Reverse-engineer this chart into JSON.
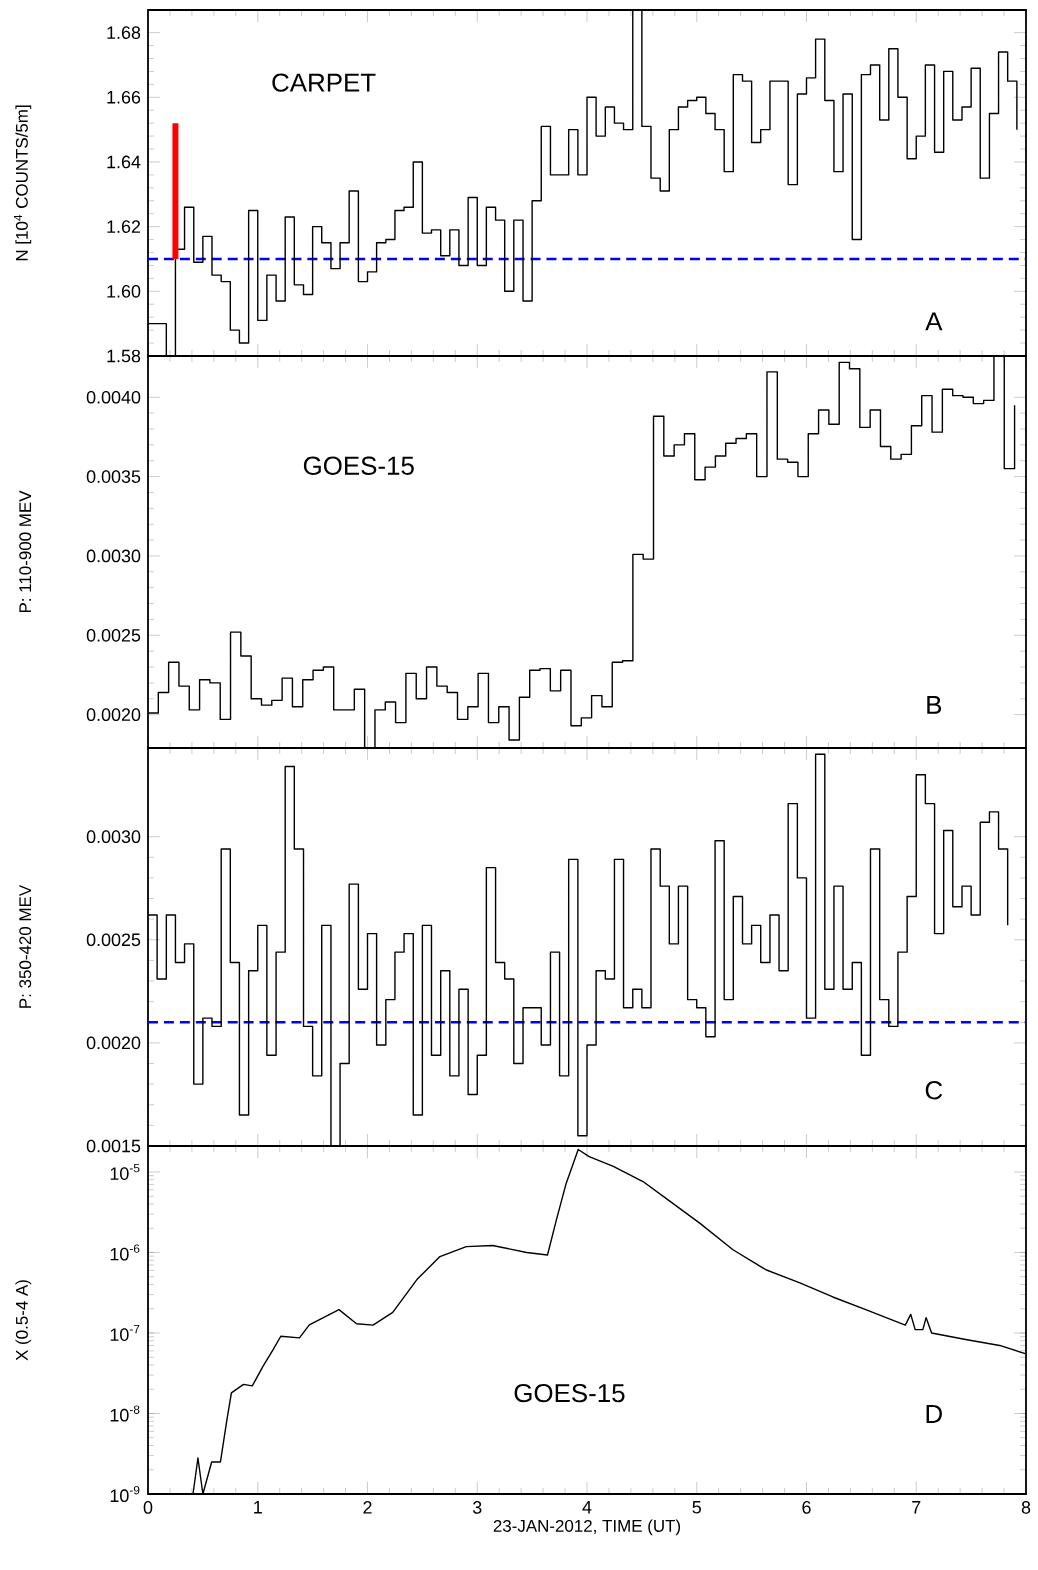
{
  "chart_data": [
    {
      "type": "step",
      "ylabel": "N [10$^{4}$ COUNTS/5m]",
      "annotations": [
        "CARPET",
        "A"
      ],
      "x": [
        0,
        0.083,
        0.167,
        0.25,
        0.333,
        0.417,
        0.5,
        0.583,
        0.667,
        0.75,
        0.833,
        0.917,
        1,
        1.083,
        1.167,
        1.25,
        1.333,
        1.417,
        1.5,
        1.583,
        1.667,
        1.75,
        1.833,
        1.917,
        2,
        2.083,
        2.167,
        2.25,
        2.333,
        2.417,
        2.5,
        2.583,
        2.667,
        2.75,
        2.833,
        2.917,
        3,
        3.083,
        3.167,
        3.25,
        3.333,
        3.417,
        3.5,
        3.583,
        3.667,
        3.75,
        3.833,
        3.917,
        4,
        4.083,
        4.167,
        4.25,
        4.333,
        4.417,
        4.5,
        4.583,
        4.667,
        4.75,
        4.833,
        4.917,
        5,
        5.083,
        5.167,
        5.25,
        5.333,
        5.417,
        5.5,
        5.583,
        5.667,
        5.75,
        5.833,
        5.917,
        6,
        6.083,
        6.167,
        6.25,
        6.333,
        6.417,
        6.5,
        6.583,
        6.667,
        6.75,
        6.833,
        6.917,
        7,
        7.083,
        7.167,
        7.25,
        7.333,
        7.417,
        7.5,
        7.583,
        7.667,
        7.75,
        7.833,
        7.917
      ],
      "series": [
        {
          "color": "#000000",
          "values": [
            1.59,
            1.59,
            1.58,
            1.613,
            1.626,
            1.609,
            1.617,
            1.605,
            1.603,
            1.588,
            1.584,
            1.625,
            1.591,
            1.605,
            1.597,
            1.623,
            1.602,
            1.599,
            1.62,
            1.615,
            1.607,
            1.615,
            1.631,
            1.603,
            1.606,
            1.615,
            1.616,
            1.625,
            1.626,
            1.64,
            1.618,
            1.619,
            1.611,
            1.619,
            1.608,
            1.629,
            1.608,
            1.626,
            1.622,
            1.6,
            1.622,
            1.597,
            1.628,
            1.651,
            1.636,
            1.636,
            1.65,
            1.636,
            1.66,
            1.648,
            1.657,
            1.652,
            1.65,
            1.687,
            1.651,
            1.635,
            1.631,
            1.65,
            1.657,
            1.659,
            1.66,
            1.655,
            1.65,
            1.637,
            1.667,
            1.665,
            1.646,
            1.65,
            1.665,
            1.665,
            1.633,
            1.661,
            1.666,
            1.678,
            1.659,
            1.637,
            1.661,
            1.616,
            1.667,
            1.67,
            1.653,
            1.675,
            1.66,
            1.641,
            1.648,
            1.67,
            1.643,
            1.668,
            1.653,
            1.657,
            1.669,
            1.635,
            1.655,
            1.674,
            1.665,
            1.65
          ]
        },
        {
          "type": "line",
          "color": "#ff0000",
          "x": [
            0.25,
            0.25
          ],
          "values": [
            1.61,
            1.652
          ]
        }
      ],
      "ref_lines": [
        {
          "axis": "y",
          "value": 1.61,
          "color": "#0000ff",
          "line_style": "dashed"
        }
      ],
      "xlim": [
        0,
        8
      ],
      "xticks": [
        {
          "value": 0,
          "label": null
        },
        {
          "value": 1,
          "label": null
        },
        {
          "value": 2,
          "label": null
        },
        {
          "value": 3,
          "label": null
        },
        {
          "value": 4,
          "label": null
        },
        {
          "value": 5,
          "label": null
        },
        {
          "value": 6,
          "label": null
        },
        {
          "value": 7,
          "label": null
        },
        {
          "value": 8,
          "label": null
        }
      ],
      "ylim": [
        1.58,
        1.687
      ],
      "yticks": [
        {
          "value": 1.58,
          "label": "1.58"
        },
        {
          "value": 1.6,
          "label": "1.60"
        },
        {
          "value": 1.62,
          "label": "1.62"
        },
        {
          "value": 1.64,
          "label": "1.64"
        },
        {
          "value": 1.66,
          "label": "1.66"
        },
        {
          "value": 1.68,
          "label": "1.68"
        }
      ],
      "tick_labels": "y"
    },
    {
      "type": "step",
      "ylabel": "P: 110-900 MEV",
      "annotations": [
        "GOES-15",
        "B"
      ],
      "x": [
        0,
        0.094,
        0.188,
        0.282,
        0.376,
        0.47,
        0.564,
        0.658,
        0.752,
        0.846,
        0.94,
        1.034,
        1.128,
        1.222,
        1.316,
        1.41,
        1.504,
        1.598,
        1.692,
        1.786,
        1.88,
        1.974,
        2.068,
        2.162,
        2.256,
        2.35,
        2.444,
        2.538,
        2.632,
        2.726,
        2.82,
        2.914,
        3.008,
        3.102,
        3.196,
        3.29,
        3.384,
        3.478,
        3.572,
        3.666,
        3.76,
        3.854,
        3.948,
        4.042,
        4.136,
        4.23,
        4.324,
        4.418,
        4.512,
        4.606,
        4.7,
        4.794,
        4.888,
        4.982,
        5.076,
        5.17,
        5.264,
        5.358,
        5.452,
        5.546,
        5.64,
        5.734,
        5.828,
        5.922,
        6.016,
        6.11,
        6.204,
        6.298,
        6.392,
        6.486,
        6.58,
        6.674,
        6.768,
        6.862,
        6.956,
        7.05,
        7.144,
        7.238,
        7.332,
        7.426,
        7.52,
        7.614,
        7.708,
        7.802,
        7.896
      ],
      "series": [
        {
          "color": "#000000",
          "values": [
            0.00201,
            0.00214,
            0.00233,
            0.00218,
            0.00203,
            0.00222,
            0.0022,
            0.00197,
            0.00252,
            0.00237,
            0.0021,
            0.00206,
            0.00209,
            0.00223,
            0.00205,
            0.00222,
            0.00228,
            0.0023,
            0.00203,
            0.00203,
            0.00216,
            0.00179,
            0.00203,
            0.00208,
            0.00195,
            0.00226,
            0.0021,
            0.0023,
            0.00218,
            0.00214,
            0.00197,
            0.00205,
            0.00226,
            0.00195,
            0.00205,
            0.00184,
            0.00211,
            0.00228,
            0.00229,
            0.00215,
            0.00228,
            0.00193,
            0.00198,
            0.00212,
            0.00205,
            0.00233,
            0.00234,
            0.00301,
            0.00298,
            0.00388,
            0.00363,
            0.0037,
            0.00377,
            0.00348,
            0.00356,
            0.00363,
            0.00371,
            0.00374,
            0.00377,
            0.0035,
            0.00416,
            0.00361,
            0.00359,
            0.0035,
            0.00377,
            0.00392,
            0.00383,
            0.00422,
            0.00418,
            0.00381,
            0.00392,
            0.00369,
            0.00361,
            0.00364,
            0.00382,
            0.00401,
            0.00378,
            0.00405,
            0.00401,
            0.004,
            0.00396,
            0.00398,
            0.00426,
            0.00355,
            0.00395
          ]
        }
      ],
      "xlim": [
        0,
        8
      ],
      "xticks": [
        {
          "value": 0,
          "label": null
        },
        {
          "value": 1,
          "label": null
        },
        {
          "value": 2,
          "label": null
        },
        {
          "value": 3,
          "label": null
        },
        {
          "value": 4,
          "label": null
        },
        {
          "value": 5,
          "label": null
        },
        {
          "value": 6,
          "label": null
        },
        {
          "value": 7,
          "label": null
        },
        {
          "value": 8,
          "label": null
        }
      ],
      "ylim": [
        0.00179,
        0.00426
      ],
      "yticks": [
        {
          "value": 0.002,
          "label": "0.0020"
        },
        {
          "value": 0.0025,
          "label": "0.0025"
        },
        {
          "value": 0.003,
          "label": "0.0030"
        },
        {
          "value": 0.0035,
          "label": "0.0035"
        },
        {
          "value": 0.004,
          "label": "0.0040"
        }
      ],
      "tick_labels": "y"
    },
    {
      "type": "step",
      "ylabel": "P: 350-420 MEV",
      "annotations": [
        "C"
      ],
      "x": [
        0,
        0.083,
        0.167,
        0.25,
        0.333,
        0.417,
        0.5,
        0.583,
        0.667,
        0.75,
        0.833,
        0.917,
        1,
        1.083,
        1.167,
        1.25,
        1.333,
        1.417,
        1.5,
        1.583,
        1.667,
        1.75,
        1.833,
        1.917,
        2,
        2.083,
        2.167,
        2.25,
        2.333,
        2.417,
        2.5,
        2.583,
        2.667,
        2.75,
        2.833,
        2.917,
        3,
        3.083,
        3.167,
        3.25,
        3.333,
        3.417,
        3.5,
        3.583,
        3.667,
        3.75,
        3.833,
        3.917,
        4,
        4.083,
        4.167,
        4.25,
        4.333,
        4.417,
        4.5,
        4.583,
        4.667,
        4.75,
        4.833,
        4.917,
        5,
        5.083,
        5.167,
        5.25,
        5.333,
        5.417,
        5.5,
        5.583,
        5.667,
        5.75,
        5.833,
        5.917,
        6,
        6.083,
        6.167,
        6.25,
        6.333,
        6.417,
        6.5,
        6.583,
        6.667,
        6.75,
        6.833,
        6.917,
        7,
        7.083,
        7.167,
        7.25,
        7.333,
        7.417,
        7.5,
        7.583,
        7.667,
        7.75,
        7.833
      ],
      "series": [
        {
          "color": "#000000",
          "values": [
            0.00262,
            0.00231,
            0.00262,
            0.00239,
            0.00248,
            0.0018,
            0.00212,
            0.00208,
            0.00294,
            0.00239,
            0.00165,
            0.00235,
            0.00257,
            0.00194,
            0.00244,
            0.00334,
            0.00294,
            0.00208,
            0.00184,
            0.00257,
            0.0015,
            0.0019,
            0.00277,
            0.00226,
            0.00253,
            0.00199,
            0.00221,
            0.00244,
            0.00253,
            0.00165,
            0.00257,
            0.00194,
            0.00235,
            0.00184,
            0.00226,
            0.00175,
            0.00194,
            0.00285,
            0.00239,
            0.00231,
            0.0019,
            0.00217,
            0.00217,
            0.00199,
            0.00244,
            0.00184,
            0.00289,
            0.00155,
            0.00199,
            0.00235,
            0.00231,
            0.00289,
            0.00217,
            0.00226,
            0.00217,
            0.00294,
            0.00276,
            0.00248,
            0.00276,
            0.00221,
            0.00217,
            0.00203,
            0.00298,
            0.00221,
            0.00271,
            0.00248,
            0.00257,
            0.00239,
            0.00262,
            0.00235,
            0.00316,
            0.0028,
            0.00212,
            0.0034,
            0.00226,
            0.00276,
            0.00226,
            0.00239,
            0.00194,
            0.00294,
            0.00221,
            0.00208,
            0.00244,
            0.00271,
            0.0033,
            0.00316,
            0.00253,
            0.00303,
            0.00266,
            0.00276,
            0.00262,
            0.00307,
            0.00312,
            0.00294,
            0.00257
          ]
        }
      ],
      "ref_lines": [
        {
          "axis": "y",
          "value": 0.0021,
          "color": "#0000ff",
          "line_style": "dashed"
        }
      ],
      "xlim": [
        0,
        8
      ],
      "xticks": [
        {
          "value": 0,
          "label": null
        },
        {
          "value": 1,
          "label": null
        },
        {
          "value": 2,
          "label": null
        },
        {
          "value": 3,
          "label": null
        },
        {
          "value": 4,
          "label": null
        },
        {
          "value": 5,
          "label": null
        },
        {
          "value": 6,
          "label": null
        },
        {
          "value": 7,
          "label": null
        },
        {
          "value": 8,
          "label": null
        }
      ],
      "ylim": [
        0.0015,
        0.00343
      ],
      "yticks": [
        {
          "value": 0.0015,
          "label": "0.0015"
        },
        {
          "value": 0.002,
          "label": "0.0020"
        },
        {
          "value": 0.0025,
          "label": "0.0025"
        },
        {
          "value": 0.003,
          "label": "0.0030"
        }
      ],
      "tick_labels": "y"
    },
    {
      "type": "line",
      "ylabel": "X (0.5-4 A)",
      "xlabel": "23-JAN-2012,  TIME (UT)",
      "annotations": [
        "GOES-15",
        "D"
      ],
      "log": "y",
      "x": [
        0,
        0.41,
        0.455,
        0.5,
        0.58,
        0.66,
        0.72,
        0.76,
        0.87,
        0.95,
        1.05,
        1.14,
        1.21,
        1.38,
        1.47,
        1.74,
        1.9,
        2.05,
        2.23,
        2.45,
        2.66,
        2.9,
        3.14,
        3.45,
        3.64,
        3.72,
        3.81,
        3.92,
        4.02,
        4.24,
        4.51,
        4.72,
        5.03,
        5.33,
        5.63,
        5.94,
        6.24,
        6.54,
        6.9,
        6.95,
        6.99,
        7.06,
        7.09,
        7.14,
        7.45,
        7.76,
        8
      ],
      "series": [
        {
          "color": "#000000",
          "values": [
            1e-09,
            1e-09,
            2.8e-09,
            1e-09,
            2.5e-09,
            2.5e-09,
            8.5e-09,
            1.8e-08,
            2.3e-08,
            2.2e-08,
            3.9e-08,
            6.2e-08,
            9.1e-08,
            8.7e-08,
            1.26e-07,
            1.95e-07,
            1.3e-07,
            1.25e-07,
            1.8e-07,
            4.6e-07,
            8.9e-07,
            1.18e-06,
            1.22e-06,
            1e-06,
            9.3e-07,
            2.5e-06,
            7.2e-06,
            1.9e-05,
            1.55e-05,
            1.17e-05,
            7.6e-06,
            4.7e-06,
            2.3e-06,
            1.08e-06,
            6.1e-07,
            4.2e-07,
            2.8e-07,
            1.95e-07,
            1.25e-07,
            1.7e-07,
            1.1e-07,
            1.1e-07,
            1.55e-07,
            1e-07,
            8.3e-08,
            7e-08,
            5.5e-08
          ]
        }
      ],
      "xlim": [
        0,
        8
      ],
      "xticks": [
        {
          "value": 0,
          "label": "0"
        },
        {
          "value": 1,
          "label": "1"
        },
        {
          "value": 2,
          "label": "2"
        },
        {
          "value": 3,
          "label": "3"
        },
        {
          "value": 4,
          "label": "4"
        },
        {
          "value": 5,
          "label": "5"
        },
        {
          "value": 6,
          "label": "6"
        },
        {
          "value": 7,
          "label": "7"
        },
        {
          "value": 8,
          "label": "8"
        }
      ],
      "ylim": [
        1e-09,
        2.1e-05
      ],
      "yticks": [
        {
          "value": 1e-09,
          "label": "10$^{-9}$"
        },
        {
          "value": 1e-08,
          "label": "10$^{-8}$"
        },
        {
          "value": 1e-07,
          "label": "10$^{-7}$"
        },
        {
          "value": 1e-06,
          "label": "10$^{-6}$"
        },
        {
          "value": 1e-05,
          "label": "10$^{-5}$"
        }
      ]
    }
  ]
}
